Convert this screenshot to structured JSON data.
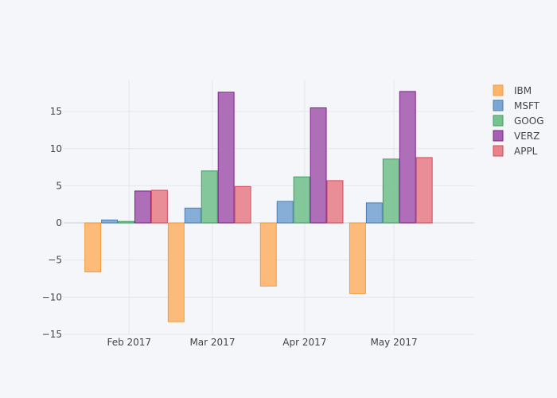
{
  "chart_data": {
    "type": "bar",
    "title": "",
    "xlabel": "",
    "ylabel": "",
    "x_axis_type": "date",
    "x_ticks": [
      "2017-02-01",
      "2017-03-01",
      "2017-04-01",
      "2017-05-01"
    ],
    "x_tick_labels": [
      "Feb 2017",
      "Mar 2017",
      "Apr 2017",
      "May 2017"
    ],
    "x_range": [
      "2017-01-10",
      "2017-05-28"
    ],
    "y_ticks": [
      -15,
      -10,
      -5,
      0,
      5,
      10,
      15
    ],
    "y_tick_labels": [
      "−15",
      "−10",
      "−5",
      "0",
      "5",
      "10",
      "15"
    ],
    "ylim": [
      -15,
      19.3
    ],
    "grid": true,
    "legend_position": "top-right",
    "groups": [
      "2017-01-31",
      "2017-02-28",
      "2017-03-31",
      "2017-04-30"
    ],
    "series": [
      {
        "name": "IBM",
        "color": "#fdb56c",
        "border": "#f59b36",
        "values": [
          -6.6,
          -13.3,
          -8.5,
          -9.5
        ]
      },
      {
        "name": "MSFT",
        "color": "#7aa6d2",
        "border": "#4a7eb3",
        "values": [
          0.4,
          2.0,
          2.9,
          2.7
        ]
      },
      {
        "name": "GOOG",
        "color": "#78c290",
        "border": "#3f9c5f",
        "values": [
          0.2,
          7.0,
          6.2,
          8.6
        ]
      },
      {
        "name": "VERZ",
        "color": "#a75fb0",
        "border": "#7a2489",
        "values": [
          4.3,
          17.6,
          15.5,
          17.7
        ]
      },
      {
        "name": "APPL",
        "color": "#e8828b",
        "border": "#d34a5b",
        "values": [
          4.4,
          4.9,
          5.7,
          8.8
        ]
      }
    ]
  }
}
